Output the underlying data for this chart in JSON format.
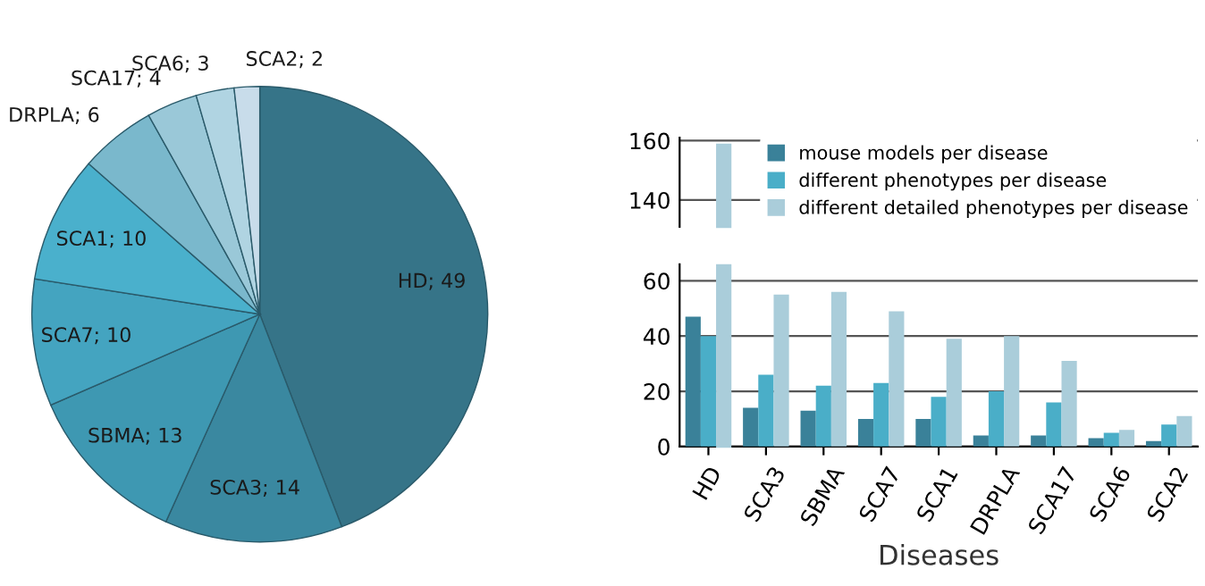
{
  "chart_data": [
    {
      "type": "pie",
      "categories": [
        "HD; 49",
        "SCA3; 14",
        "SBMA; 13",
        "SCA7; 10",
        "SCA1; 10",
        "DRPLA; 6",
        "SCA17; 4",
        "SCA6; 3",
        "SCA2; 2"
      ],
      "values": [
        49,
        14,
        13,
        10,
        10,
        6,
        4,
        3,
        2
      ],
      "colors": [
        "#367488",
        "#3a88a0",
        "#3e98b2",
        "#44a4c0",
        "#4ab0cc",
        "#7ab8cc",
        "#9ac8d8",
        "#b0d4e2",
        "#c8dcea"
      ]
    },
    {
      "type": "bar",
      "xlabel": "Diseases",
      "categories": [
        "HD",
        "SCA3",
        "SBMA",
        "SCA7",
        "SCA1",
        "DRPLA",
        "SCA17",
        "SCA6",
        "SCA2"
      ],
      "series": [
        {
          "color": "#3a8199",
          "values": [
            47,
            14,
            13,
            10,
            10,
            4,
            4,
            3,
            2
          ]
        },
        {
          "color": "#4aaec8",
          "values": [
            40,
            26,
            22,
            23,
            18,
            20,
            16,
            5,
            8
          ]
        },
        {
          "color": "#aacdda",
          "values": [
            null,
            55,
            56,
            49,
            39,
            40,
            31,
            6,
            11
          ]
        }
      ],
      "ylim": [
        0,
        66
      ],
      "yticks": [
        0,
        20,
        40,
        60
      ],
      "grid": "y",
      "legend": false
    },
    {
      "type": "bar",
      "categories": [
        null,
        null,
        null,
        null,
        null,
        null,
        null,
        null,
        null
      ],
      "series": [
        {
          "name": "mouse models per disease",
          "color": "#3a8199",
          "values": [
            null,
            null,
            null,
            null,
            null,
            null,
            null,
            null,
            null
          ]
        },
        {
          "name": "different phenotypes per disease",
          "color": "#4aaec8",
          "values": [
            null,
            null,
            null,
            null,
            null,
            null,
            null,
            null,
            null
          ]
        },
        {
          "name": "different detailed phenotypes per disease",
          "color": "#aacdda",
          "values": [
            159,
            null,
            null,
            null,
            null,
            null,
            null,
            null,
            null
          ]
        }
      ],
      "ylim": [
        131,
        161
      ],
      "yticks": [
        140,
        160
      ],
      "grid": "y",
      "legend": "top right",
      "tick_labels": "y"
    }
  ]
}
